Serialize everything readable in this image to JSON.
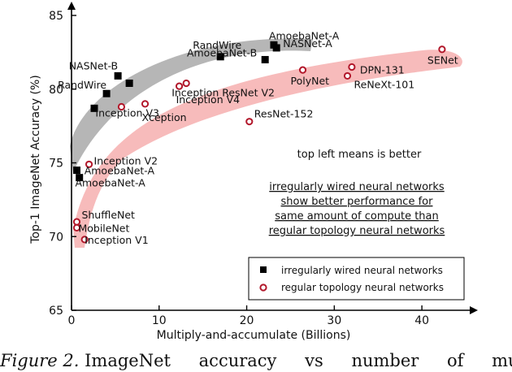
{
  "chart_data": {
    "type": "scatter",
    "title": "",
    "xlabel": "Multiply-and-accumulate (Billions)",
    "ylabel": "Top-1 ImageNet Accuracy (%)",
    "xlim": [
      0,
      45
    ],
    "ylim": [
      65,
      85
    ],
    "xticks": [
      0,
      10,
      20,
      30,
      40
    ],
    "yticks": [
      65,
      70,
      75,
      80,
      85
    ],
    "grid": false,
    "legend_position": "bottom-right",
    "series": [
      {
        "name": "irregularly wired neural networks",
        "marker": "square",
        "color": "#000000",
        "points": [
          {
            "label": "AmoebaNet-A",
            "x": 0.6,
            "y": 74.5
          },
          {
            "label": "AmoebaNet-A",
            "x": 0.9,
            "y": 74.0
          },
          {
            "label": "",
            "x": 2.6,
            "y": 78.7
          },
          {
            "label": "RandWire",
            "x": 4.0,
            "y": 79.7
          },
          {
            "label": "NASNet-B",
            "x": 5.3,
            "y": 80.9
          },
          {
            "label": "",
            "x": 6.6,
            "y": 80.4
          },
          {
            "label": "RandWire",
            "x": 17.0,
            "y": 82.2
          },
          {
            "label": "AmoebaNet-B",
            "x": 22.1,
            "y": 82.0
          },
          {
            "label": "AmoebaNet-A",
            "x": 23.1,
            "y": 83.0
          },
          {
            "label": "NASNet-A",
            "x": 23.4,
            "y": 82.8
          }
        ]
      },
      {
        "name": "regular topology neural networks",
        "marker": "circle",
        "color": "#b2182b",
        "points": [
          {
            "label": "ShuffleNet",
            "x": 0.6,
            "y": 71.0
          },
          {
            "label": "MobileNet",
            "x": 0.6,
            "y": 70.6
          },
          {
            "label": "Inception V1",
            "x": 1.5,
            "y": 69.8
          },
          {
            "label": "Inception V2",
            "x": 2.0,
            "y": 74.9
          },
          {
            "label": "Inception V3",
            "x": 5.7,
            "y": 78.8
          },
          {
            "label": "Xception",
            "x": 8.4,
            "y": 79.0
          },
          {
            "label": "Inception V4",
            "x": 12.3,
            "y": 80.2
          },
          {
            "label": "Inception ResNet V2",
            "x": 13.1,
            "y": 80.4
          },
          {
            "label": "ResNet-152",
            "x": 20.3,
            "y": 77.8
          },
          {
            "label": "PolyNet",
            "x": 26.4,
            "y": 81.3
          },
          {
            "label": "DPN-131",
            "x": 32.0,
            "y": 81.5
          },
          {
            "label": "ReNeXt-101",
            "x": 31.5,
            "y": 80.9
          },
          {
            "label": "SENet",
            "x": 42.3,
            "y": 82.7
          }
        ]
      }
    ],
    "annotations": {
      "note": "top left means is better",
      "underlined_lines": [
        "irregularly wired neural networks",
        "show better performance for",
        "same amount of compute than",
        "regular topology neural networks"
      ]
    }
  },
  "caption": {
    "figure_label": "Figure 2.",
    "words": [
      "ImageNet",
      "accuracy",
      "vs",
      "number",
      "of",
      "multiply-an"
    ]
  }
}
